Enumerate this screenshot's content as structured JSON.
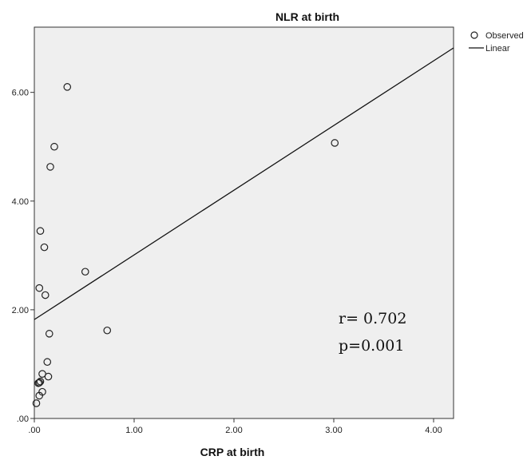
{
  "chart_data": {
    "type": "scatter",
    "title": "NLR at birth",
    "xlabel": "CRP at birth",
    "ylabel": "",
    "xlim": [
      0,
      4.2
    ],
    "ylim": [
      0,
      7.2
    ],
    "x_ticks": [
      ".00",
      "1.00",
      "2.00",
      "3.00",
      "4.00"
    ],
    "y_ticks": [
      ".00",
      "2.00",
      "4.00",
      "6.00"
    ],
    "grid": false,
    "legend_position": "top-right",
    "legend": [
      "Observed",
      "Linear"
    ],
    "series": [
      {
        "name": "Observed",
        "kind": "points",
        "points": [
          {
            "x": 0.33,
            "y": 6.1
          },
          {
            "x": 0.2,
            "y": 5.0
          },
          {
            "x": 0.16,
            "y": 4.63
          },
          {
            "x": 3.01,
            "y": 5.07
          },
          {
            "x": 0.06,
            "y": 3.45
          },
          {
            "x": 0.1,
            "y": 3.15
          },
          {
            "x": 0.51,
            "y": 2.7
          },
          {
            "x": 0.05,
            "y": 2.4
          },
          {
            "x": 0.11,
            "y": 2.27
          },
          {
            "x": 0.15,
            "y": 1.56
          },
          {
            "x": 0.73,
            "y": 1.62
          },
          {
            "x": 0.13,
            "y": 1.04
          },
          {
            "x": 0.08,
            "y": 0.82
          },
          {
            "x": 0.14,
            "y": 0.77
          },
          {
            "x": 0.05,
            "y": 0.66
          },
          {
            "x": 0.06,
            "y": 0.68
          },
          {
            "x": 0.04,
            "y": 0.65
          },
          {
            "x": 0.08,
            "y": 0.49
          },
          {
            "x": 0.05,
            "y": 0.42
          },
          {
            "x": 0.02,
            "y": 0.28
          }
        ]
      },
      {
        "name": "Linear",
        "kind": "line",
        "intercept": 1.82,
        "slope": 1.19
      }
    ],
    "annotations": [
      "r= 0.702",
      "p=0.001"
    ]
  },
  "colors": {
    "plot_background": "#efefef",
    "marker_stroke": "#222222",
    "line": "#111111",
    "frame": "#333333"
  }
}
